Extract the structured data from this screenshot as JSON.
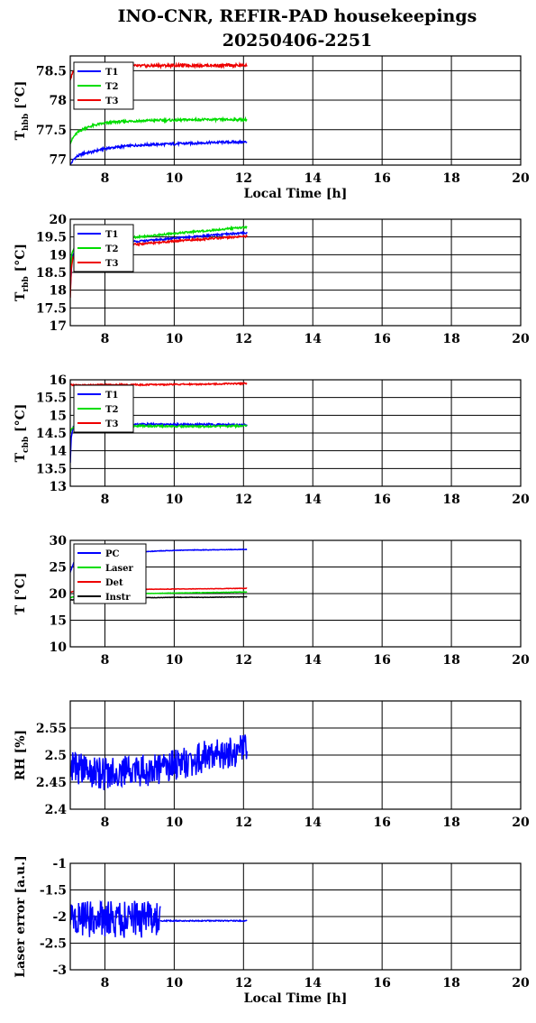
{
  "figure": {
    "title_line1": "INO-CNR, REFIR-PAD housekeepings",
    "title_line2": "20250406-2251"
  },
  "chart_data": [
    {
      "type": "line",
      "ylabel_main": "T",
      "ylabel_sub": "hbb",
      "ylabel_unit": " [°C]",
      "xlabel": "Local Time [h]",
      "xlim": [
        7,
        20
      ],
      "ylim": [
        76.9,
        78.75
      ],
      "yticks": [
        77,
        77.5,
        78,
        78.5
      ],
      "ytick_labels": [
        "77",
        "77.5",
        "78",
        "78.5"
      ],
      "xticks": [
        8,
        10,
        12,
        14,
        16,
        18,
        20
      ],
      "xtick_labels": [
        "8",
        "10",
        "12",
        "14",
        "16",
        "18",
        "20"
      ],
      "grid": true,
      "legend_position": "top-left",
      "series": [
        {
          "name": "T1",
          "color": "#0000ff",
          "x": [
            7.0,
            7.1,
            7.2,
            7.4,
            7.6,
            7.8,
            8.0,
            8.3,
            8.6,
            9.0,
            9.5,
            10.0,
            10.5,
            11.0,
            11.5,
            12.1
          ],
          "y": [
            76.9,
            77.0,
            77.05,
            77.1,
            77.12,
            77.15,
            77.18,
            77.2,
            77.22,
            77.24,
            77.25,
            77.26,
            77.27,
            77.28,
            77.29,
            77.29
          ],
          "noise": 0.02
        },
        {
          "name": "T2",
          "color": "#00dd00",
          "x": [
            7.0,
            7.1,
            7.2,
            7.4,
            7.6,
            7.8,
            8.0,
            8.3,
            8.6,
            9.0,
            9.5,
            10.0,
            10.5,
            11.0,
            11.5,
            12.1
          ],
          "y": [
            77.28,
            77.38,
            77.45,
            77.52,
            77.56,
            77.59,
            77.61,
            77.63,
            77.64,
            77.65,
            77.66,
            77.66,
            77.67,
            77.67,
            77.67,
            77.67
          ],
          "noise": 0.02
        },
        {
          "name": "T3",
          "color": "#ee0000",
          "x": [
            7.0,
            7.1,
            7.3,
            7.6,
            8.0,
            9.0,
            10.0,
            11.0,
            12.1
          ],
          "y": [
            78.35,
            78.5,
            78.56,
            78.58,
            78.58,
            78.58,
            78.59,
            78.59,
            78.59
          ],
          "noise": 0.025
        }
      ]
    },
    {
      "type": "line",
      "ylabel_main": "T",
      "ylabel_sub": "rbb",
      "ylabel_unit": " [°C]",
      "xlabel": "",
      "xlim": [
        7,
        20
      ],
      "ylim": [
        17,
        20
      ],
      "yticks": [
        17,
        17.5,
        18,
        18.5,
        19,
        19.5,
        20
      ],
      "ytick_labels": [
        "17",
        "17.5",
        "18",
        "18.5",
        "19",
        "19.5",
        "20"
      ],
      "xticks": [
        8,
        10,
        12,
        14,
        16,
        18,
        20
      ],
      "xtick_labels": [
        "8",
        "10",
        "12",
        "14",
        "16",
        "18",
        "20"
      ],
      "grid": true,
      "legend_position": "top-left",
      "series": [
        {
          "name": "T1",
          "color": "#0000ff",
          "x": [
            7.0,
            7.05,
            7.15,
            7.4,
            8.0,
            9.0,
            10.0,
            11.0,
            12.1
          ],
          "y": [
            18.0,
            18.9,
            19.15,
            19.25,
            19.32,
            19.38,
            19.46,
            19.54,
            19.62
          ],
          "noise": 0.025
        },
        {
          "name": "T2",
          "color": "#00dd00",
          "x": [
            7.0,
            7.05,
            7.15,
            7.4,
            8.0,
            9.0,
            10.0,
            11.0,
            12.1
          ],
          "y": [
            18.5,
            19.05,
            19.3,
            19.38,
            19.45,
            19.5,
            19.6,
            19.68,
            19.78
          ],
          "noise": 0.025
        },
        {
          "name": "T3",
          "color": "#ee0000",
          "x": [
            7.0,
            7.03,
            7.08,
            7.15,
            7.4,
            8.0,
            9.0,
            10.0,
            11.0,
            12.1
          ],
          "y": [
            17.8,
            18.6,
            18.95,
            19.05,
            19.12,
            19.22,
            19.3,
            19.38,
            19.45,
            19.52
          ],
          "noise": 0.025
        }
      ]
    },
    {
      "type": "line",
      "ylabel_main": "T",
      "ylabel_sub": "cbb",
      "ylabel_unit": " [°C]",
      "xlabel": "",
      "xlim": [
        7,
        20
      ],
      "ylim": [
        13,
        16
      ],
      "yticks": [
        13,
        13.5,
        14,
        14.5,
        15,
        15.5,
        16
      ],
      "ytick_labels": [
        "13",
        "13.5",
        "14",
        "14.5",
        "15",
        "15.5",
        "16"
      ],
      "xticks": [
        8,
        10,
        12,
        14,
        16,
        18,
        20
      ],
      "xtick_labels": [
        "8",
        "10",
        "12",
        "14",
        "16",
        "18",
        "20"
      ],
      "grid": true,
      "legend_position": "top-left",
      "series": [
        {
          "name": "T1",
          "color": "#0000ff",
          "x": [
            7.0,
            7.03,
            7.08,
            7.2,
            7.5,
            8.0,
            9.0,
            10.0,
            11.0,
            12.1
          ],
          "y": [
            13.65,
            14.4,
            14.65,
            14.72,
            14.75,
            14.75,
            14.75,
            14.74,
            14.74,
            14.73
          ],
          "noise": 0.025
        },
        {
          "name": "T2",
          "color": "#00dd00",
          "x": [
            7.0,
            7.05,
            7.2,
            7.5,
            8.0,
            9.0,
            10.0,
            11.0,
            12.1
          ],
          "y": [
            14.5,
            14.65,
            14.7,
            14.7,
            14.7,
            14.7,
            14.69,
            14.69,
            14.7
          ],
          "noise": 0.025
        },
        {
          "name": "T3",
          "color": "#ee0000",
          "x": [
            7.0,
            7.05,
            7.2,
            8.0,
            9.0,
            10.0,
            11.0,
            12.1
          ],
          "y": [
            15.88,
            15.85,
            15.85,
            15.86,
            15.86,
            15.87,
            15.88,
            15.9
          ],
          "noise": 0.02
        }
      ]
    },
    {
      "type": "line",
      "ylabel_main": "T [°C]",
      "ylabel_sub": "",
      "ylabel_unit": "",
      "xlabel": "",
      "xlim": [
        7,
        20
      ],
      "ylim": [
        10,
        30
      ],
      "yticks": [
        10,
        15,
        20,
        25,
        30
      ],
      "ytick_labels": [
        "10",
        "15",
        "20",
        "25",
        "30"
      ],
      "xticks": [
        8,
        10,
        12,
        14,
        16,
        18,
        20
      ],
      "xtick_labels": [
        "8",
        "10",
        "12",
        "14",
        "16",
        "18",
        "20"
      ],
      "grid": true,
      "legend_position": "top-left",
      "series": [
        {
          "name": "PC",
          "color": "#0000ff",
          "x": [
            7.0,
            7.1,
            7.3,
            7.6,
            8.0,
            8.5,
            9.0,
            9.5,
            10.0,
            10.5,
            11.0,
            11.5,
            12.1
          ],
          "y": [
            24.0,
            25.8,
            26.6,
            27.0,
            27.3,
            27.6,
            27.8,
            28.0,
            28.1,
            28.2,
            28.2,
            28.25,
            28.3
          ],
          "noise": 0.05
        },
        {
          "name": "Laser",
          "color": "#00dd00",
          "x": [
            7.0,
            7.2,
            7.6,
            8.0,
            9.0,
            10.0,
            11.0,
            12.1
          ],
          "y": [
            19.2,
            19.6,
            19.8,
            19.9,
            20.0,
            20.1,
            20.2,
            20.3
          ],
          "noise": 0.04
        },
        {
          "name": "Det",
          "color": "#ee0000",
          "x": [
            7.0,
            7.3,
            7.6,
            8.0,
            9.0,
            10.0,
            11.0,
            12.1
          ],
          "y": [
            20.3,
            20.6,
            20.7,
            20.75,
            20.8,
            20.85,
            20.9,
            21.0
          ],
          "noise": 0.04
        },
        {
          "name": "Instr",
          "color": "#000000",
          "x": [
            7.0,
            7.5,
            8.0,
            9.0,
            10.0,
            11.0,
            12.1
          ],
          "y": [
            18.8,
            19.0,
            19.1,
            19.2,
            19.3,
            19.3,
            19.4
          ],
          "noise": 0.04
        }
      ]
    },
    {
      "type": "line",
      "ylabel_main": "RH [%]",
      "ylabel_sub": "",
      "ylabel_unit": "",
      "xlabel": "",
      "xlim": [
        7,
        20
      ],
      "ylim": [
        2.4,
        2.6
      ],
      "yticks": [
        2.4,
        2.45,
        2.5,
        2.55
      ],
      "ytick_labels": [
        "2.4",
        "2.45",
        "2.5",
        "2.55"
      ],
      "xticks": [
        8,
        10,
        12,
        14,
        16,
        18,
        20
      ],
      "xtick_labels": [
        "8",
        "10",
        "12",
        "14",
        "16",
        "18",
        "20"
      ],
      "grid": true,
      "legend_position": "none",
      "series": [
        {
          "color": "#0000ff",
          "x": [
            7.0,
            7.5,
            8.0,
            8.5,
            9.0,
            9.5,
            10.0,
            10.5,
            11.0,
            11.5,
            12.1
          ],
          "y": [
            2.48,
            2.47,
            2.465,
            2.47,
            2.47,
            2.475,
            2.48,
            2.49,
            2.5,
            2.505,
            2.51
          ],
          "noise": 0.03
        }
      ]
    },
    {
      "type": "line",
      "ylabel_main": "Laser error [a.u.]",
      "ylabel_sub": "",
      "ylabel_unit": "",
      "xlabel": "Local Time [h]",
      "xlim": [
        7,
        20
      ],
      "ylim": [
        -3,
        -1
      ],
      "yticks": [
        -3,
        -2.5,
        -2,
        -1.5,
        -1
      ],
      "ytick_labels": [
        "-3",
        "-2.5",
        "-2",
        "-1.5",
        "-1"
      ],
      "xticks": [
        8,
        10,
        12,
        14,
        16,
        18,
        20
      ],
      "xtick_labels": [
        "8",
        "10",
        "12",
        "14",
        "16",
        "18",
        "20"
      ],
      "grid": true,
      "legend_position": "none",
      "series": [
        {
          "color": "#0000ff",
          "x": [
            7.0,
            8.0,
            9.0,
            9.6
          ],
          "y": [
            -2.05,
            -2.05,
            -2.05,
            -2.05
          ],
          "noise": 0.35
        },
        {
          "color": "#0000ff",
          "x": [
            9.6,
            10.0,
            11.0,
            12.1
          ],
          "y": [
            -2.08,
            -2.08,
            -2.08,
            -2.08
          ],
          "noise": 0.01
        }
      ]
    }
  ]
}
